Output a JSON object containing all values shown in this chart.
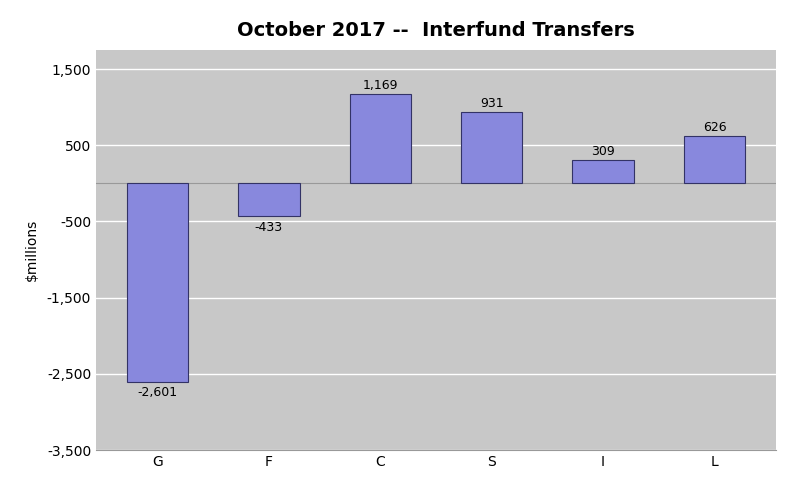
{
  "title": "October 2017 --  Interfund Transfers",
  "categories": [
    "G",
    "F",
    "C",
    "S",
    "I",
    "L"
  ],
  "values": [
    -2601,
    -433,
    1169,
    931,
    309,
    626
  ],
  "bar_color": "#8888dd",
  "bar_edgecolor": "#333366",
  "ylabel": "$millions",
  "ylim": [
    -3500,
    1750
  ],
  "yticks": [
    -3500,
    -2500,
    -1500,
    -500,
    500,
    1500
  ],
  "plot_background_color": "#c8c8c8",
  "figure_background": "#ffffff",
  "title_fontsize": 14,
  "label_fontsize": 10,
  "tick_fontsize": 10,
  "annotation_fontsize": 9,
  "bar_width": 0.55
}
